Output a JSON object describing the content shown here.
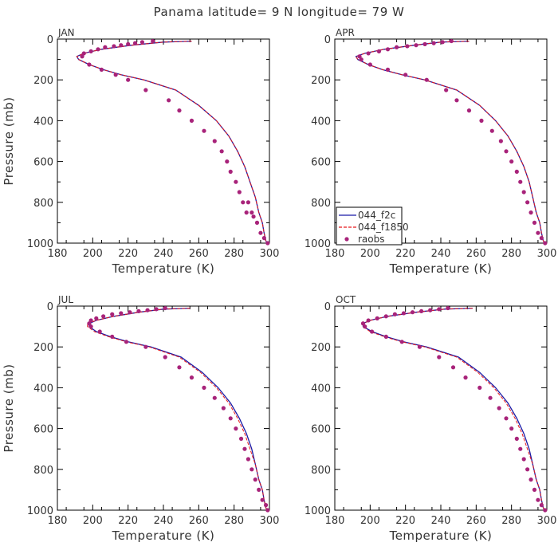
{
  "title": "Panama  latitude= 9 N longitude= 79 W",
  "colors": {
    "f2c": "#1a1aa6",
    "f1850": "#e8191c",
    "raobs": "#a8237a",
    "axis": "#000000",
    "text": "#333333"
  },
  "legend": {
    "placement": "inside-lower-left of APR panel",
    "entries": [
      {
        "label": "044_f2c",
        "style": "solid"
      },
      {
        "label": "044_f1850",
        "style": "dashed"
      },
      {
        "label": "raobs",
        "style": "dot"
      }
    ]
  },
  "chart_data": [
    {
      "type": "line",
      "panel": "JAN",
      "xlabel": "Temperature (K)",
      "ylabel": "Pressure (mb)",
      "xlim": [
        180,
        300
      ],
      "ylim": [
        1000,
        0
      ],
      "y_inverted": true,
      "xticks": [
        "180",
        "200",
        "220",
        "240",
        "260",
        "280",
        "300"
      ],
      "yticks": [
        "0",
        "200",
        "400",
        "600",
        "800",
        "1000"
      ],
      "series": [
        {
          "name": "044_f2c",
          "style": "solid",
          "x": [
            256,
            240,
            222,
            205,
            195,
            191,
            192,
            198,
            206,
            216,
            229,
            247,
            260,
            270,
            277,
            282,
            286,
            289,
            292,
            294,
            296,
            297,
            298,
            299
          ],
          "y": [
            10,
            15,
            30,
            50,
            70,
            85,
            100,
            125,
            150,
            175,
            200,
            250,
            325,
            400,
            475,
            550,
            625,
            700,
            775,
            850,
            900,
            950,
            990,
            1000
          ]
        },
        {
          "name": "044_f1850",
          "style": "dashed",
          "x": [
            256,
            240,
            222,
            205,
            195,
            191,
            192,
            198,
            206,
            216,
            229,
            247,
            260,
            270,
            277,
            282,
            286,
            289,
            292,
            294,
            296,
            297,
            298,
            299
          ],
          "y": [
            10,
            15,
            30,
            50,
            70,
            85,
            100,
            125,
            150,
            175,
            200,
            250,
            325,
            400,
            475,
            550,
            625,
            700,
            775,
            850,
            900,
            950,
            990,
            1000
          ]
        },
        {
          "name": "raobs",
          "style": "dot",
          "x": [
            234,
            228,
            224,
            220,
            216,
            212,
            207,
            203,
            199,
            195,
            194,
            198,
            205,
            213,
            220,
            230,
            243,
            249,
            256,
            263,
            269,
            273,
            276,
            278,
            281,
            283,
            285,
            287,
            288,
            290,
            291,
            293,
            295,
            297,
            299
          ],
          "y": [
            10,
            15,
            20,
            25,
            30,
            35,
            40,
            50,
            60,
            70,
            85,
            125,
            150,
            175,
            200,
            250,
            300,
            350,
            400,
            450,
            500,
            550,
            600,
            650,
            700,
            750,
            800,
            850,
            800,
            850,
            870,
            900,
            950,
            975,
            1000
          ]
        }
      ]
    },
    {
      "type": "line",
      "panel": "APR",
      "xlabel": "Temperature (K)",
      "ylabel": "",
      "xlim": [
        180,
        300
      ],
      "ylim": [
        1000,
        0
      ],
      "y_inverted": true,
      "xticks": [
        "180",
        "200",
        "220",
        "240",
        "260",
        "280",
        "300"
      ],
      "yticks": [
        "0",
        "200",
        "400",
        "600",
        "800",
        "1000"
      ],
      "series": [
        {
          "name": "044_f2c",
          "style": "solid",
          "x": [
            256,
            240,
            225,
            208,
            197,
            192,
            193,
            199,
            207,
            218,
            231,
            249,
            262,
            271,
            278,
            283,
            287,
            290,
            292,
            294,
            296,
            297,
            298,
            299
          ],
          "y": [
            10,
            15,
            30,
            50,
            70,
            85,
            100,
            125,
            150,
            175,
            200,
            250,
            325,
            400,
            475,
            550,
            625,
            700,
            775,
            850,
            900,
            950,
            990,
            1000
          ]
        },
        {
          "name": "044_f1850",
          "style": "dashed",
          "x": [
            256,
            240,
            225,
            208,
            197,
            192,
            193,
            199,
            207,
            218,
            231,
            249,
            262,
            271,
            278,
            283,
            287,
            290,
            292,
            294,
            296,
            297,
            298,
            299
          ],
          "y": [
            10,
            15,
            30,
            50,
            70,
            85,
            100,
            125,
            150,
            175,
            200,
            250,
            325,
            400,
            475,
            550,
            625,
            700,
            775,
            850,
            900,
            950,
            990,
            1000
          ]
        },
        {
          "name": "raobs",
          "style": "dot",
          "x": [
            246,
            241,
            236,
            231,
            226,
            221,
            215,
            210,
            205,
            199,
            194,
            195,
            200,
            210,
            220,
            232,
            243,
            249,
            256,
            263,
            269,
            274,
            277,
            280,
            283,
            285,
            287,
            289,
            291,
            293,
            295,
            297,
            299
          ],
          "y": [
            10,
            15,
            20,
            25,
            30,
            35,
            40,
            50,
            60,
            70,
            85,
            100,
            125,
            150,
            175,
            200,
            250,
            300,
            350,
            400,
            450,
            500,
            550,
            600,
            650,
            700,
            750,
            800,
            850,
            900,
            950,
            975,
            1000
          ]
        }
      ]
    },
    {
      "type": "line",
      "panel": "JUL",
      "xlabel": "Temperature (K)",
      "ylabel": "Pressure (mb)",
      "xlim": [
        180,
        300
      ],
      "ylim": [
        1000,
        0
      ],
      "y_inverted": true,
      "xticks": [
        "180",
        "200",
        "220",
        "240",
        "260",
        "280",
        "300"
      ],
      "yticks": [
        "0",
        "200",
        "400",
        "600",
        "800",
        "1000"
      ],
      "series": [
        {
          "name": "044_f2c",
          "style": "solid",
          "x": [
            255,
            240,
            226,
            212,
            202,
            198,
            198,
            202,
            210,
            220,
            233,
            250,
            262,
            271,
            278,
            283,
            287,
            290,
            292,
            294,
            296,
            297,
            298,
            299
          ],
          "y": [
            10,
            15,
            30,
            50,
            70,
            85,
            100,
            125,
            150,
            175,
            200,
            250,
            325,
            400,
            475,
            550,
            625,
            700,
            775,
            850,
            900,
            950,
            990,
            1000
          ]
        },
        {
          "name": "044_f1850",
          "style": "dashed",
          "x": [
            255,
            240,
            226,
            212,
            202,
            197,
            197,
            201,
            209,
            219,
            232,
            249,
            261,
            270,
            277,
            282,
            286,
            289,
            292,
            294,
            296,
            297,
            298,
            299
          ],
          "y": [
            10,
            15,
            30,
            50,
            70,
            85,
            100,
            125,
            150,
            175,
            200,
            250,
            325,
            400,
            475,
            550,
            625,
            700,
            775,
            850,
            900,
            950,
            990,
            1000
          ]
        },
        {
          "name": "raobs",
          "style": "dot",
          "x": [
            241,
            236,
            231,
            226,
            221,
            216,
            211,
            206,
            202,
            199,
            198,
            199,
            204,
            211,
            219,
            230,
            241,
            249,
            256,
            263,
            269,
            274,
            278,
            281,
            284,
            286,
            288,
            290,
            292,
            294,
            296,
            298,
            299
          ],
          "y": [
            10,
            15,
            20,
            25,
            30,
            35,
            40,
            50,
            60,
            70,
            85,
            100,
            125,
            150,
            175,
            200,
            250,
            300,
            350,
            400,
            450,
            500,
            550,
            600,
            650,
            700,
            750,
            800,
            850,
            900,
            950,
            975,
            1000
          ]
        }
      ]
    },
    {
      "type": "line",
      "panel": "OCT",
      "xlabel": "Temperature (K)",
      "ylabel": "",
      "xlim": [
        180,
        300
      ],
      "ylim": [
        1000,
        0
      ],
      "y_inverted": true,
      "xticks": [
        "180",
        "200",
        "220",
        "240",
        "260",
        "280",
        "300"
      ],
      "yticks": [
        "0",
        "200",
        "400",
        "600",
        "800",
        "1000"
      ],
      "series": [
        {
          "name": "044_f2c",
          "style": "solid",
          "x": [
            258,
            242,
            226,
            210,
            200,
            196,
            196,
            201,
            209,
            219,
            232,
            250,
            262,
            271,
            278,
            283,
            287,
            290,
            292,
            294,
            296,
            297,
            298,
            299
          ],
          "y": [
            10,
            15,
            30,
            50,
            70,
            85,
            100,
            125,
            150,
            175,
            200,
            250,
            325,
            400,
            475,
            550,
            625,
            700,
            775,
            850,
            900,
            950,
            990,
            1000
          ]
        },
        {
          "name": "044_f1850",
          "style": "dashed",
          "x": [
            258,
            242,
            226,
            210,
            200,
            196,
            196,
            200,
            208,
            218,
            231,
            249,
            261,
            270,
            277,
            282,
            286,
            289,
            292,
            294,
            296,
            297,
            298,
            299
          ],
          "y": [
            10,
            15,
            30,
            50,
            70,
            85,
            100,
            125,
            150,
            175,
            200,
            250,
            325,
            400,
            475,
            550,
            625,
            700,
            775,
            850,
            900,
            950,
            990,
            1000
          ]
        },
        {
          "name": "raobs",
          "style": "dot",
          "x": [
            244,
            239,
            234,
            229,
            224,
            219,
            214,
            209,
            204,
            199,
            196,
            197,
            201,
            209,
            218,
            228,
            239,
            247,
            254,
            262,
            268,
            273,
            277,
            280,
            283,
            285,
            287,
            289,
            291,
            293,
            295,
            297,
            299
          ],
          "y": [
            10,
            15,
            20,
            25,
            30,
            35,
            40,
            50,
            60,
            70,
            85,
            100,
            125,
            150,
            175,
            200,
            250,
            300,
            350,
            400,
            450,
            500,
            550,
            600,
            650,
            700,
            750,
            800,
            850,
            900,
            950,
            975,
            1000
          ]
        }
      ]
    }
  ]
}
